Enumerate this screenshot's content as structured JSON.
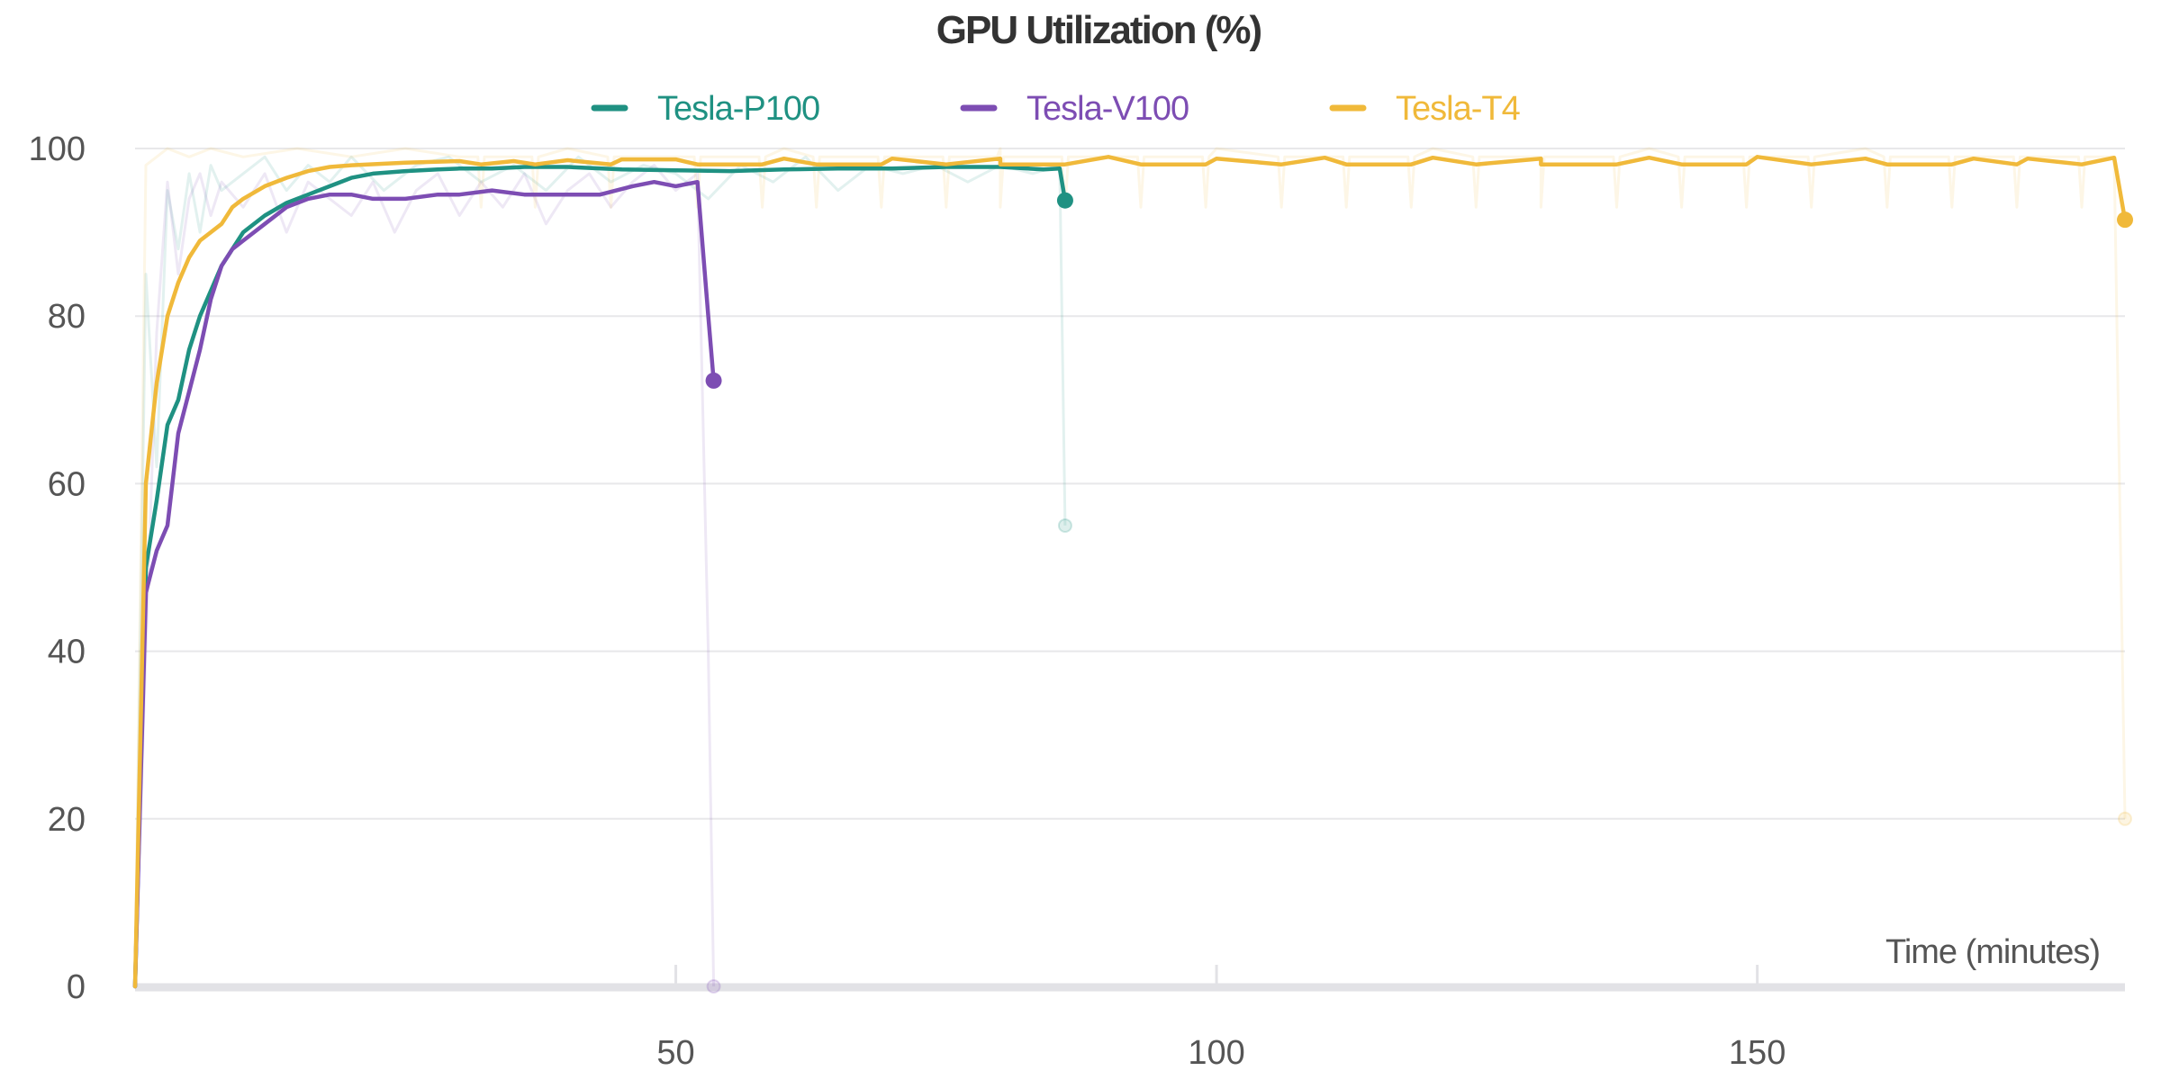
{
  "chart_data": {
    "type": "line",
    "title": "GPU Utilization (%)",
    "xlabel": "Time (minutes)",
    "ylabel": "",
    "xlim": [
      0,
      184
    ],
    "ylim": [
      0,
      100
    ],
    "xticks": [
      50,
      100,
      150
    ],
    "yticks": [
      0,
      20,
      40,
      60,
      80,
      100
    ],
    "grid": true,
    "legend": "top-center",
    "series": [
      {
        "name": "Tesla-P100",
        "color": "#1f9182",
        "smoothed": [
          [
            0,
            0
          ],
          [
            1,
            50
          ],
          [
            2,
            58
          ],
          [
            3,
            67
          ],
          [
            4,
            70
          ],
          [
            5,
            76
          ],
          [
            6,
            80
          ],
          [
            7,
            83
          ],
          [
            8,
            86
          ],
          [
            9,
            88
          ],
          [
            10,
            90
          ],
          [
            12,
            92
          ],
          [
            14,
            93.5
          ],
          [
            16,
            94.5
          ],
          [
            18,
            95.5
          ],
          [
            20,
            96.5
          ],
          [
            22,
            97
          ],
          [
            25,
            97.3
          ],
          [
            28,
            97.5
          ],
          [
            30,
            97.6
          ],
          [
            33,
            97.6
          ],
          [
            36,
            97.8
          ],
          [
            40,
            97.8
          ],
          [
            45,
            97.5
          ],
          [
            50,
            97.4
          ],
          [
            55,
            97.3
          ],
          [
            60,
            97.5
          ],
          [
            65,
            97.6
          ],
          [
            70,
            97.6
          ],
          [
            75,
            97.8
          ],
          [
            80,
            97.8
          ],
          [
            84,
            97.5
          ],
          [
            85.5,
            97.6
          ],
          [
            86,
            93.8
          ]
        ],
        "raw": [
          [
            0,
            0
          ],
          [
            1,
            85
          ],
          [
            2,
            62
          ],
          [
            3,
            95
          ],
          [
            4,
            88
          ],
          [
            5,
            97
          ],
          [
            6,
            90
          ],
          [
            7,
            98
          ],
          [
            8,
            95
          ],
          [
            10,
            97
          ],
          [
            12,
            99
          ],
          [
            14,
            95
          ],
          [
            16,
            98
          ],
          [
            18,
            96
          ],
          [
            20,
            99
          ],
          [
            23,
            95
          ],
          [
            26,
            98
          ],
          [
            29,
            99
          ],
          [
            32,
            96
          ],
          [
            35,
            98
          ],
          [
            38,
            95
          ],
          [
            41,
            99
          ],
          [
            44,
            96
          ],
          [
            47,
            98
          ],
          [
            50,
            97
          ],
          [
            53,
            94
          ],
          [
            56,
            98
          ],
          [
            59,
            96
          ],
          [
            62,
            99
          ],
          [
            65,
            95
          ],
          [
            68,
            98
          ],
          [
            71,
            97
          ],
          [
            74,
            98
          ],
          [
            77,
            96
          ],
          [
            80,
            98
          ],
          [
            83,
            97
          ],
          [
            85.5,
            98
          ],
          [
            86,
            55
          ]
        ],
        "final_smoothed": 93.8,
        "final_raw": 55
      },
      {
        "name": "Tesla-V100",
        "color": "#7d4db3",
        "smoothed": [
          [
            0,
            0
          ],
          [
            1,
            47
          ],
          [
            2,
            52
          ],
          [
            3,
            55
          ],
          [
            4,
            66
          ],
          [
            5,
            71
          ],
          [
            6,
            76
          ],
          [
            7,
            82
          ],
          [
            8,
            86
          ],
          [
            9,
            88
          ],
          [
            10,
            89
          ],
          [
            12,
            91
          ],
          [
            14,
            93
          ],
          [
            16,
            94
          ],
          [
            18,
            94.5
          ],
          [
            20,
            94.5
          ],
          [
            22,
            94
          ],
          [
            25,
            94
          ],
          [
            28,
            94.5
          ],
          [
            30,
            94.5
          ],
          [
            33,
            95
          ],
          [
            36,
            94.5
          ],
          [
            40,
            94.5
          ],
          [
            43,
            94.5
          ],
          [
            46,
            95.5
          ],
          [
            48,
            96
          ],
          [
            50,
            95.5
          ],
          [
            52,
            96
          ],
          [
            53,
            80
          ],
          [
            53.5,
            72.3
          ]
        ],
        "raw": [
          [
            0,
            0
          ],
          [
            1,
            40
          ],
          [
            2,
            78
          ],
          [
            3,
            96
          ],
          [
            4,
            85
          ],
          [
            5,
            94
          ],
          [
            6,
            97
          ],
          [
            7,
            92
          ],
          [
            8,
            96
          ],
          [
            10,
            93
          ],
          [
            12,
            97
          ],
          [
            14,
            90
          ],
          [
            16,
            96
          ],
          [
            18,
            94
          ],
          [
            20,
            92
          ],
          [
            22,
            96
          ],
          [
            24,
            90
          ],
          [
            26,
            95
          ],
          [
            28,
            97
          ],
          [
            30,
            92
          ],
          [
            32,
            96
          ],
          [
            34,
            93
          ],
          [
            36,
            97
          ],
          [
            38,
            91
          ],
          [
            40,
            95
          ],
          [
            42,
            97
          ],
          [
            44,
            93
          ],
          [
            46,
            96
          ],
          [
            48,
            98
          ],
          [
            50,
            95
          ],
          [
            52,
            97
          ],
          [
            53,
            40
          ],
          [
            53.5,
            0
          ]
        ],
        "final_smoothed": 72.3,
        "final_raw": 0
      },
      {
        "name": "Tesla-T4",
        "color": "#f0b93a",
        "smoothed": [
          [
            0,
            0
          ],
          [
            1,
            60
          ],
          [
            2,
            72
          ],
          [
            3,
            80
          ],
          [
            4,
            84
          ],
          [
            5,
            87
          ],
          [
            5.5,
            88
          ],
          [
            6,
            89
          ],
          [
            7,
            90
          ],
          [
            8,
            91
          ],
          [
            9,
            93
          ],
          [
            10,
            94
          ],
          [
            12,
            95.5
          ],
          [
            14,
            96.5
          ],
          [
            16,
            97.3
          ],
          [
            18,
            97.8
          ],
          [
            20,
            98
          ],
          [
            25,
            98.3
          ],
          [
            30,
            98.5
          ],
          [
            35,
            98.5
          ],
          [
            40,
            98.6
          ],
          [
            45,
            98.7
          ],
          [
            50,
            98.7
          ],
          [
            60,
            98.8
          ],
          [
            70,
            98.8
          ],
          [
            80,
            98.8
          ],
          [
            90,
            99
          ],
          [
            100,
            98.8
          ],
          [
            110,
            98.9
          ],
          [
            120,
            98.9
          ],
          [
            130,
            98.8
          ],
          [
            140,
            98.9
          ],
          [
            150,
            99
          ],
          [
            160,
            98.8
          ],
          [
            170,
            98.8
          ],
          [
            175,
            98.8
          ],
          [
            183,
            98.9
          ],
          [
            184,
            91.5
          ]
        ],
        "raw": [
          [
            0,
            0
          ],
          [
            1,
            98
          ],
          [
            2,
            99
          ],
          [
            3,
            100
          ],
          [
            5,
            99
          ],
          [
            7,
            100
          ],
          [
            10,
            99
          ],
          [
            15,
            100
          ],
          [
            20,
            99
          ],
          [
            25,
            100
          ],
          [
            30,
            99
          ],
          [
            40,
            100
          ],
          [
            50,
            99
          ],
          [
            60,
            100
          ],
          [
            70,
            99
          ],
          [
            80,
            100
          ],
          [
            90,
            99
          ],
          [
            100,
            100
          ],
          [
            110,
            99
          ],
          [
            120,
            100
          ],
          [
            130,
            99
          ],
          [
            140,
            100
          ],
          [
            150,
            99
          ],
          [
            160,
            100
          ],
          [
            170,
            99
          ],
          [
            183,
            99
          ],
          [
            184,
            20
          ]
        ],
        "dips": [
          32,
          37,
          44,
          52,
          58,
          63,
          69,
          75,
          80,
          86,
          93,
          99,
          106,
          112,
          118,
          124,
          130,
          137,
          143,
          149,
          155,
          162,
          168,
          174,
          180
        ],
        "final_smoothed": 91.5,
        "final_raw": 20
      }
    ]
  }
}
